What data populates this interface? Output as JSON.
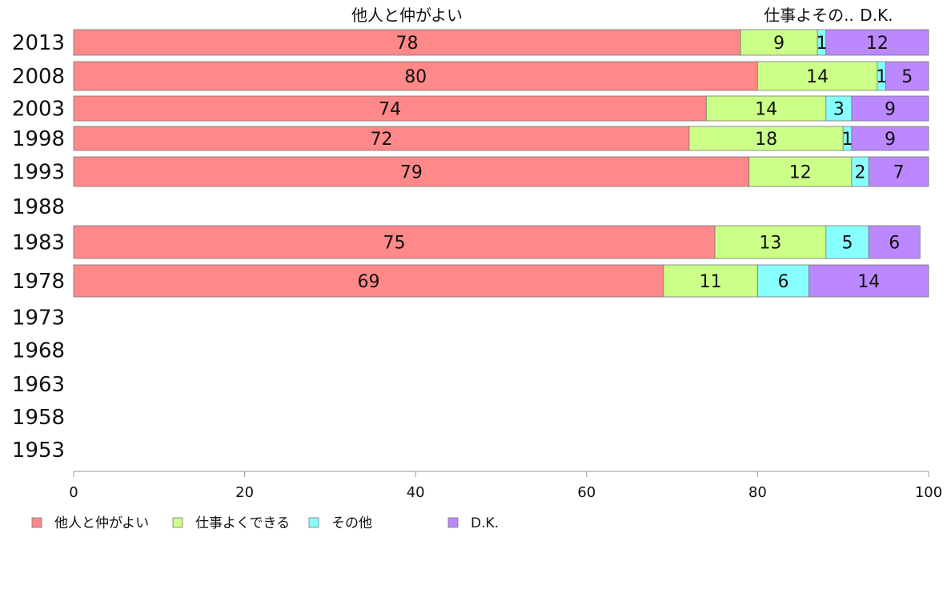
{
  "chart_data": {
    "type": "bar",
    "orientation": "horizontal",
    "stacked": true,
    "title": "",
    "xlabel": "",
    "ylabel": "",
    "xlim": [
      0,
      100
    ],
    "x_ticks": [
      0,
      20,
      40,
      60,
      80,
      100
    ],
    "grid": false,
    "legend_position": "bottom",
    "categories": [
      "2013",
      "2008",
      "2003",
      "1998",
      "1993",
      "1988",
      "1983",
      "1978",
      "1973",
      "1968",
      "1963",
      "1958",
      "1953"
    ],
    "series": [
      {
        "name": "他人と仲がよい",
        "header": "他人と仲がよい",
        "color": "#ff8888",
        "values": [
          78,
          80,
          74,
          72,
          79,
          null,
          75,
          69,
          null,
          null,
          null,
          null,
          null
        ]
      },
      {
        "name": "仕事よくできる",
        "header": "仕事よくできる",
        "color": "#ccff88",
        "values": [
          9,
          14,
          14,
          18,
          12,
          null,
          13,
          11,
          null,
          null,
          null,
          null,
          null
        ]
      },
      {
        "name": "その他",
        "header": "その他",
        "color": "#88ffff",
        "values": [
          1,
          1,
          3,
          1,
          2,
          null,
          5,
          6,
          null,
          null,
          null,
          null,
          null
        ]
      },
      {
        "name": "D.K.",
        "header": "D.K.",
        "color": "#bb88ff",
        "values": [
          12,
          5,
          9,
          9,
          7,
          null,
          6,
          14,
          null,
          null,
          null,
          null,
          null
        ]
      }
    ],
    "header_texts": [
      "他人と仲がよい",
      "仕事よその..",
      "D.K."
    ]
  }
}
